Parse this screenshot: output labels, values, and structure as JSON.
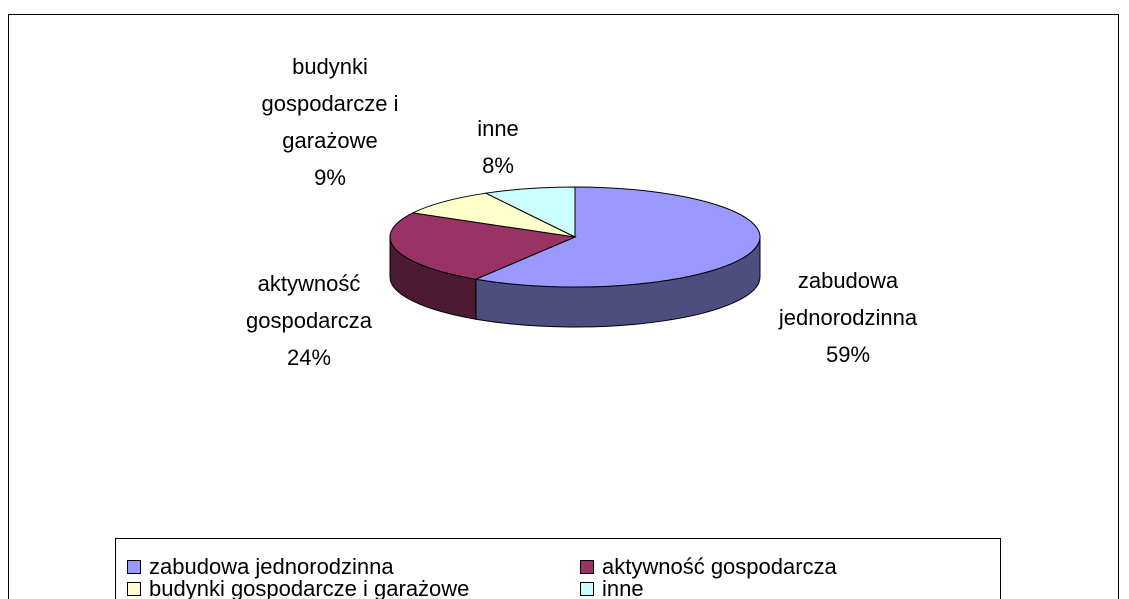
{
  "chart_data": {
    "type": "pie",
    "three_d": true,
    "categories": [
      "zabudowa jednorodzinna",
      "aktywność gospodarcza",
      "budynki gospodarcze i garażowe",
      "inne"
    ],
    "values": [
      59,
      24,
      9,
      8
    ],
    "value_labels": [
      "59%",
      "24%",
      "9%",
      "8%"
    ],
    "colors": [
      "#9999ff",
      "#993366",
      "#ffffcc",
      "#ccffff"
    ],
    "legend": "bottom"
  }
}
